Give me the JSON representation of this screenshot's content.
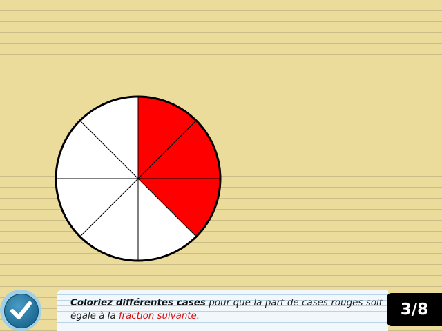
{
  "pie": {
    "slice_count": 8,
    "colored_slices": [
      0,
      1,
      2
    ],
    "colors": {
      "selected": "#ff0000",
      "unselected": "#ffffff",
      "outline": "#000000"
    }
  },
  "instruction": {
    "bold": "Coloriez différentes cases",
    "middle": " pour que la part de cases rouges soit égale à la ",
    "highlight": "fraction suivante",
    "end": "."
  },
  "target_fraction": "3/8",
  "check_button": {
    "icon": "checkmark-icon"
  },
  "colors": {
    "paper": "#ecdc9c",
    "ruling": "#cbbd87",
    "highlight": "#d81010"
  }
}
